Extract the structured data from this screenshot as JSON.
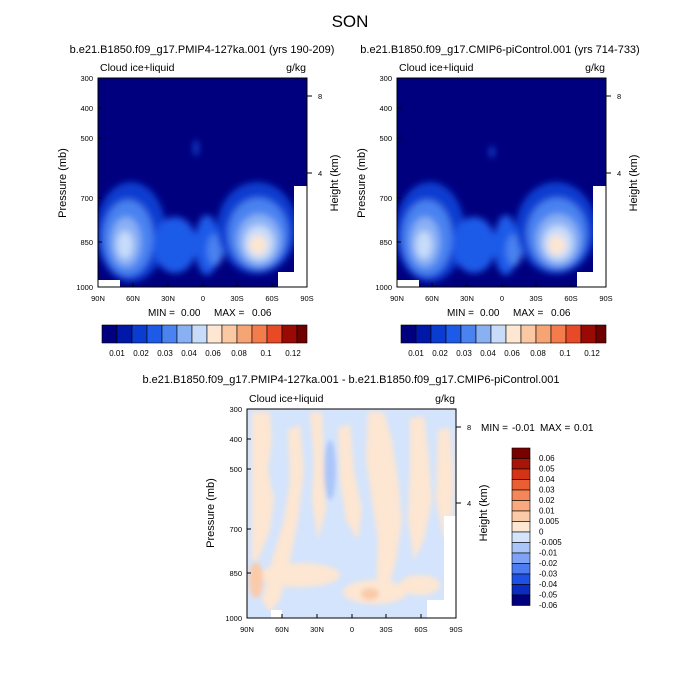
{
  "figure": {
    "title": "SON"
  },
  "colors": {
    "abs": [
      "#00007f",
      "#0018a8",
      "#0a3cd0",
      "#1e5ae8",
      "#4a82f0",
      "#8ab0f4",
      "#c8dcfa",
      "#fde6d2",
      "#fbc8a4",
      "#f7a474",
      "#f37b4c",
      "#e84a28",
      "#c8200e",
      "#9a0a04",
      "#6e0000"
    ],
    "diff": [
      "#00007f",
      "#0a2cc0",
      "#1e50e6",
      "#4c7cf0",
      "#7ea2f4",
      "#aac6f8",
      "#d4e4fc",
      "#fde6d2",
      "#fbcaa8",
      "#f8aa7e",
      "#f48658",
      "#ea5e34",
      "#d43416",
      "#a81408",
      "#7a0000"
    ]
  },
  "chart_data": [
    {
      "type": "contour",
      "title": "b.e21.B1850.f09_g17.PMIP4-127ka.001 (yrs 190-209)",
      "left_label": "Cloud ice+liquid",
      "units": "g/kg",
      "ylabel": "Pressure (mb)",
      "ylabel_right": "Height (km)",
      "x_ticks": [
        "90N",
        "60N",
        "30N",
        "0",
        "30S",
        "60S",
        "90S"
      ],
      "y_ticks": [
        "300",
        "400",
        "500",
        "700",
        "850",
        "1000"
      ],
      "y_right_ticks": [
        "8",
        "4"
      ],
      "stats": {
        "min_label": "MIN =",
        "min": "0.00",
        "max_label": "MAX =",
        "max": "0.06"
      },
      "colorbar_labels": [
        "0.01",
        "0.02",
        "0.03",
        "0.04",
        "0.06",
        "0.08",
        "0.1",
        "0.12"
      ],
      "features": [
        {
          "lat": 62,
          "p": 850,
          "value": 0.055,
          "lat_radius": 20,
          "p_radius": 130
        },
        {
          "lat": -60,
          "p": 850,
          "value": 0.06,
          "lat_radius": 24,
          "p_radius": 110
        },
        {
          "lat": 5,
          "p": 850,
          "value": 0.035,
          "lat_radius": 10,
          "p_radius": 90
        },
        {
          "lat": 35,
          "p": 870,
          "value": 0.025,
          "lat_radius": 15,
          "p_radius": 110
        },
        {
          "lat": 2,
          "p": 520,
          "value": 0.012,
          "lat_radius": 3,
          "p_radius": 40
        }
      ]
    },
    {
      "type": "contour",
      "title": "b.e21.B1850.f09_g17.CMIP6-piControl.001 (yrs 714-733)",
      "left_label": "Cloud ice+liquid",
      "units": "g/kg",
      "ylabel": "Pressure (mb)",
      "ylabel_right": "Height (km)",
      "x_ticks": [
        "90N",
        "60N",
        "30N",
        "0",
        "30S",
        "60S",
        "90S"
      ],
      "y_ticks": [
        "300",
        "400",
        "500",
        "700",
        "850",
        "1000"
      ],
      "y_right_ticks": [
        "8",
        "4"
      ],
      "stats": {
        "min_label": "MIN =",
        "min": "0.00",
        "max_label": "MAX =",
        "max": "0.06"
      },
      "colorbar_labels": [
        "0.01",
        "0.02",
        "0.03",
        "0.04",
        "0.06",
        "0.08",
        "0.1",
        "0.12"
      ],
      "features": [
        {
          "lat": 62,
          "p": 850,
          "value": 0.055,
          "lat_radius": 20,
          "p_radius": 130
        },
        {
          "lat": -60,
          "p": 850,
          "value": 0.06,
          "lat_radius": 24,
          "p_radius": 110
        },
        {
          "lat": 5,
          "p": 850,
          "value": 0.033,
          "lat_radius": 10,
          "p_radius": 90
        },
        {
          "lat": 35,
          "p": 870,
          "value": 0.025,
          "lat_radius": 15,
          "p_radius": 110
        },
        {
          "lat": 2,
          "p": 520,
          "value": 0.012,
          "lat_radius": 3,
          "p_radius": 40
        }
      ]
    },
    {
      "type": "contour",
      "title": "b.e21.B1850.f09_g17.PMIP4-127ka.001 - b.e21.B1850.f09_g17.CMIP6-piControl.001",
      "left_label": "Cloud ice+liquid",
      "units": "g/kg",
      "ylabel": "Pressure (mb)",
      "ylabel_right": "Height (km)",
      "x_ticks": [
        "90N",
        "60N",
        "30N",
        "0",
        "30S",
        "60S",
        "90S"
      ],
      "y_ticks": [
        "300",
        "400",
        "500",
        "700",
        "850",
        "1000"
      ],
      "y_right_ticks": [
        "8",
        "4"
      ],
      "stats": {
        "min_label": "MIN =",
        "min": "-0.01",
        "max_label": "MAX =",
        "max": "0.01"
      },
      "colorbar_labels": [
        "0.06",
        "0.05",
        "0.04",
        "0.03",
        "0.02",
        "0.01",
        "0.005",
        "0",
        "-0.005",
        "-0.01",
        "-0.02",
        "-0.03",
        "-0.04",
        "-0.05",
        "-0.06"
      ],
      "features": [
        {
          "lat": 82,
          "p": 890,
          "value": 0.008,
          "lat_radius": 8,
          "p_radius": 80
        },
        {
          "lat": -20,
          "p": 915,
          "value": 0.007,
          "lat_radius": 10,
          "p_radius": 40
        }
      ]
    }
  ]
}
